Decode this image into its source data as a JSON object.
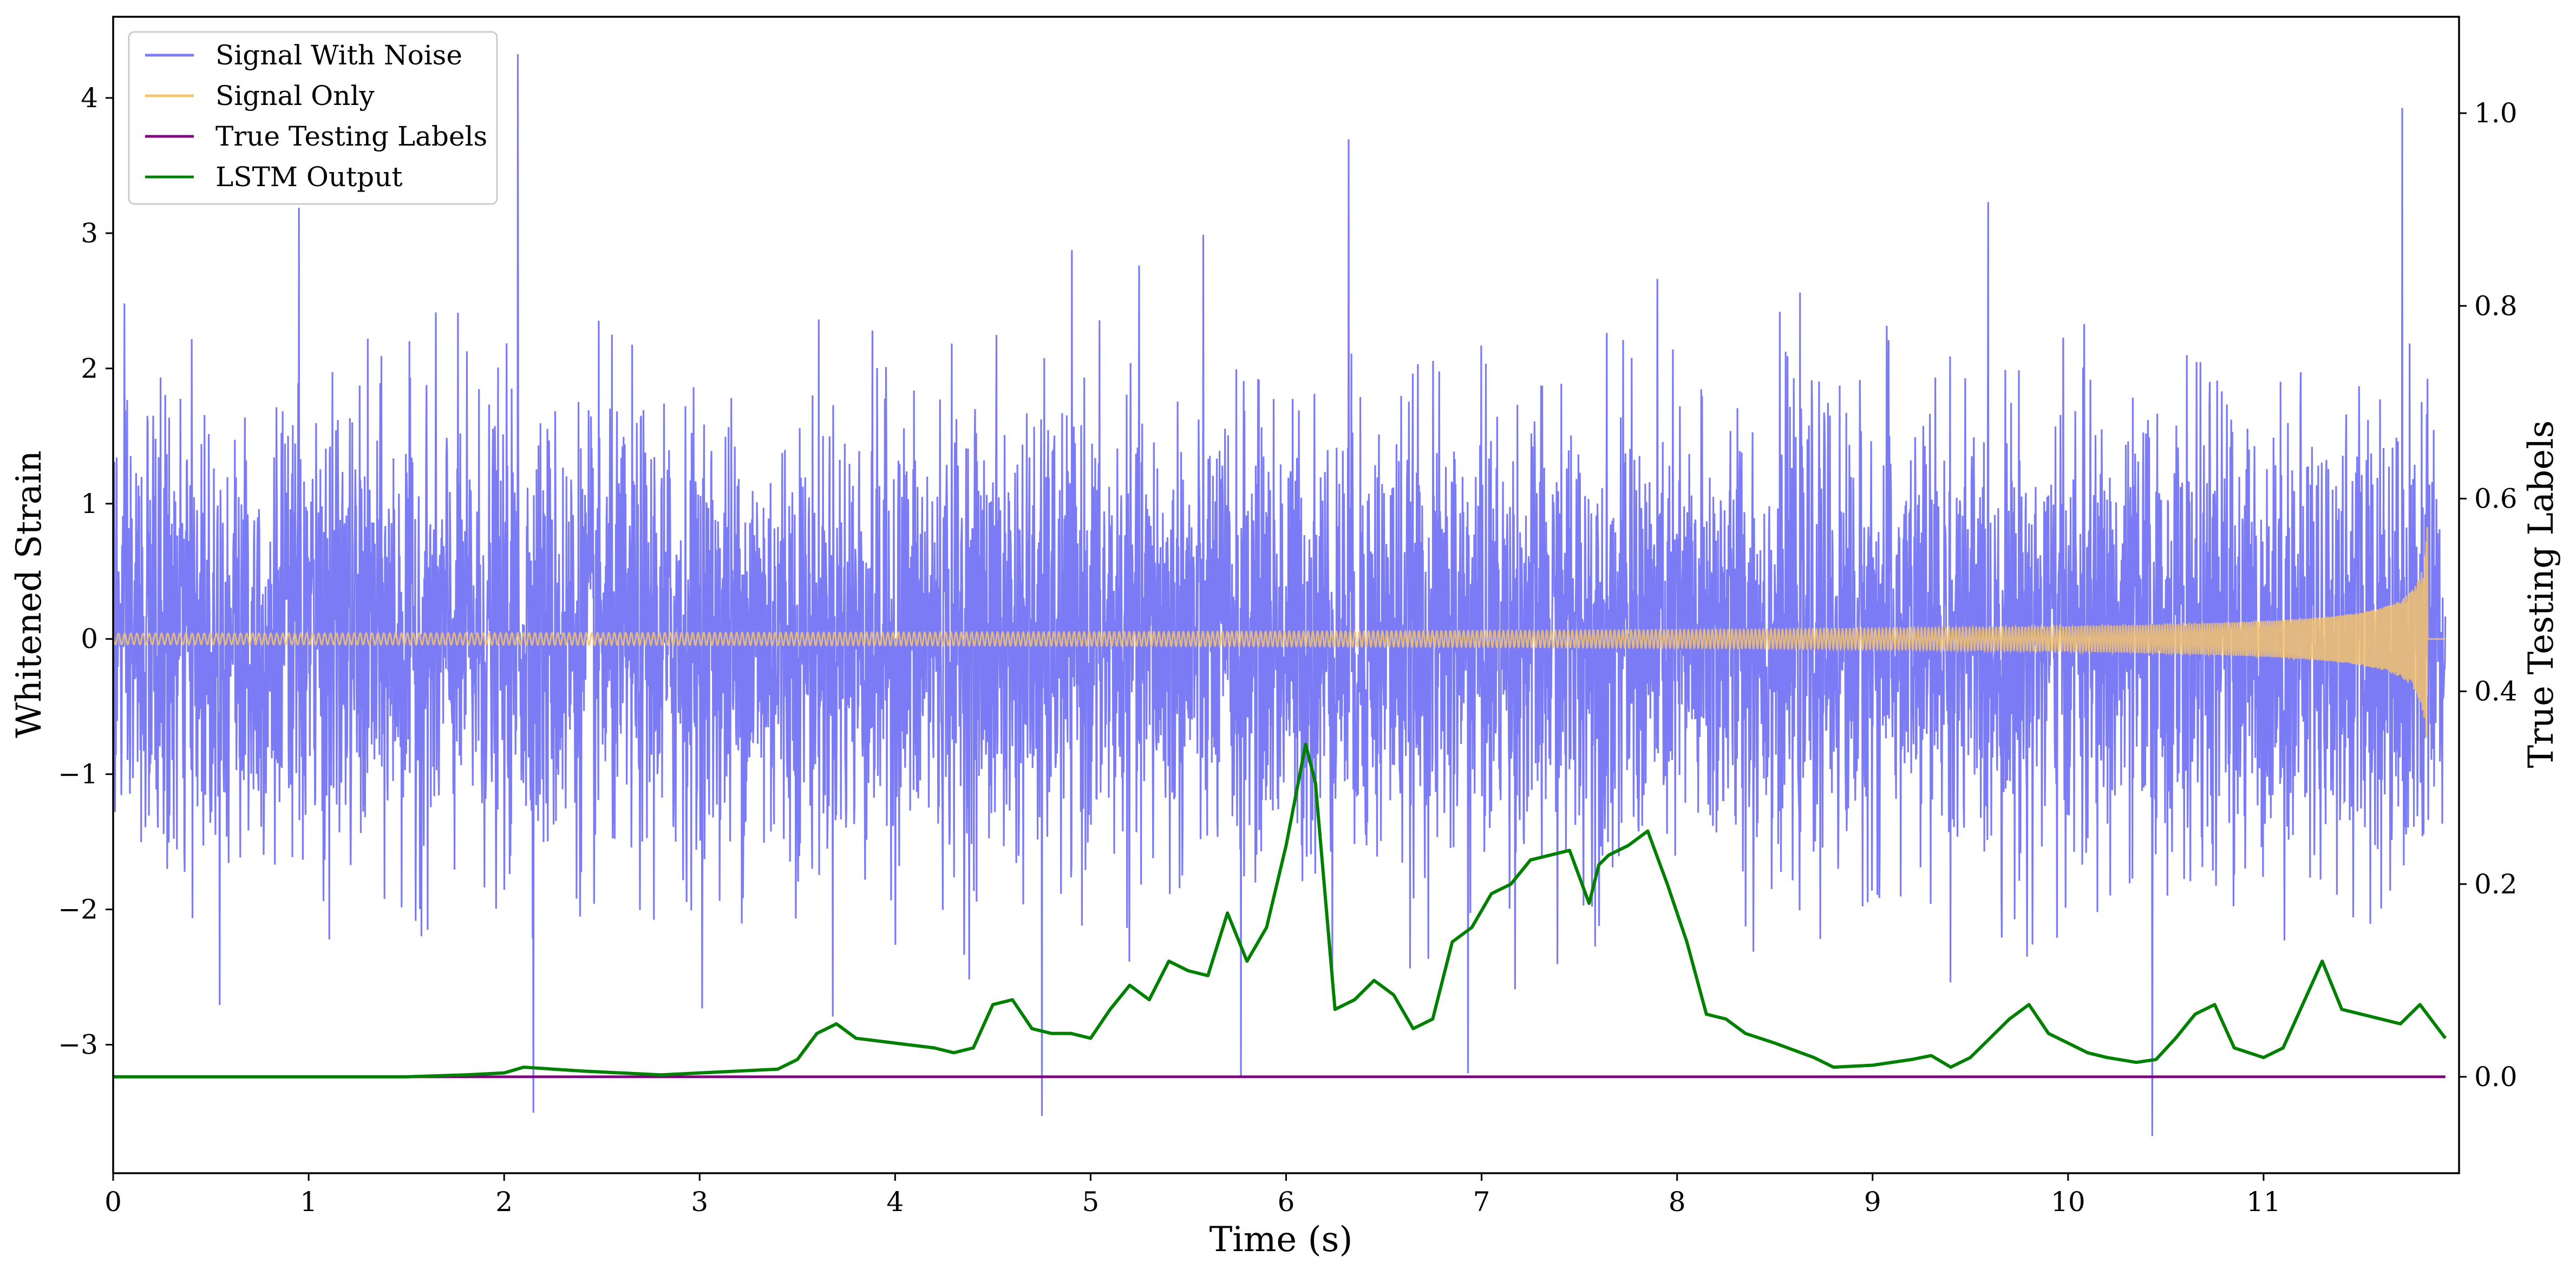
{
  "chart_data": {
    "type": "line",
    "title": "",
    "xlabel": "Time (s)",
    "ylabel": "Whitened Strain",
    "y2label": "True Testing Labels",
    "xlim": [
      0,
      12
    ],
    "ylim": [
      -3.95,
      4.6
    ],
    "y2lim": [
      -0.1,
      1.1
    ],
    "x_ticks": [
      "0",
      "1",
      "2",
      "3",
      "4",
      "5",
      "6",
      "7",
      "8",
      "9",
      "10",
      "11"
    ],
    "x_tick_values": [
      0,
      1,
      2,
      3,
      4,
      5,
      6,
      7,
      8,
      9,
      10,
      11
    ],
    "y_ticks": [
      "4",
      "3",
      "2",
      "1",
      "0",
      "−1",
      "−2",
      "−3"
    ],
    "y_tick_values": [
      4,
      3,
      2,
      1,
      0,
      -1,
      -2,
      -3
    ],
    "y2_ticks": [
      "1.0",
      "0.8",
      "0.6",
      "0.4",
      "0.2",
      "0.0"
    ],
    "y2_tick_values": [
      1.0,
      0.8,
      0.6,
      0.4,
      0.2,
      0.0
    ],
    "grid": false,
    "legend_position": "top-left",
    "colors": {
      "noise": "#7b7bf5",
      "signal": "#f4c36d",
      "labels": "#800080",
      "lstm": "#008000"
    },
    "series": [
      {
        "name": "Signal With Noise",
        "axis": "left",
        "description_range": [
          -3.6,
          4.28
        ],
        "peaks": [
          {
            "x": 0.95,
            "y": 3.2
          },
          {
            "x": 2.07,
            "y": 4.28
          },
          {
            "x": 2.15,
            "y": -3.5
          },
          {
            "x": 4.75,
            "y": -3.5
          },
          {
            "x": 6.32,
            "y": 3.72
          },
          {
            "x": 5.77,
            "y": -3.28
          },
          {
            "x": 6.93,
            "y": -3.27
          },
          {
            "x": 10.43,
            "y": -3.6
          },
          {
            "x": 11.71,
            "y": 3.7
          }
        ]
      },
      {
        "name": "Signal Only",
        "axis": "left",
        "chirp_end_x": 11.84,
        "final_amplitude": 0.9
      },
      {
        "name": "True Testing Labels",
        "axis": "right",
        "x": [
          0,
          11.93
        ],
        "values": [
          0.0,
          0.0
        ]
      },
      {
        "name": "LSTM Output",
        "axis": "right",
        "x": [
          0,
          1.0,
          1.5,
          1.8,
          2.0,
          2.1,
          2.25,
          2.4,
          2.6,
          2.8,
          3.0,
          3.2,
          3.4,
          3.5,
          3.6,
          3.7,
          3.8,
          4.0,
          4.2,
          4.3,
          4.4,
          4.5,
          4.6,
          4.7,
          4.8,
          4.9,
          5.0,
          5.1,
          5.2,
          5.3,
          5.4,
          5.5,
          5.6,
          5.7,
          5.8,
          5.9,
          6.0,
          6.1,
          6.15,
          6.25,
          6.35,
          6.45,
          6.55,
          6.65,
          6.75,
          6.85,
          6.95,
          7.05,
          7.15,
          7.25,
          7.35,
          7.45,
          7.55,
          7.6,
          7.65,
          7.75,
          7.85,
          7.95,
          8.05,
          8.15,
          8.25,
          8.35,
          8.5,
          8.7,
          8.8,
          9.0,
          9.2,
          9.3,
          9.4,
          9.5,
          9.6,
          9.7,
          9.8,
          9.9,
          10.0,
          10.1,
          10.2,
          10.35,
          10.45,
          10.55,
          10.65,
          10.75,
          10.85,
          11.0,
          11.1,
          11.2,
          11.3,
          11.4,
          11.5,
          11.7,
          11.8,
          11.93
        ],
        "values": [
          0.0,
          0.0,
          0.0,
          0.002,
          0.004,
          0.01,
          0.008,
          0.006,
          0.004,
          0.002,
          0.004,
          0.006,
          0.008,
          0.018,
          0.045,
          0.055,
          0.04,
          0.035,
          0.03,
          0.025,
          0.03,
          0.075,
          0.08,
          0.05,
          0.045,
          0.045,
          0.04,
          0.07,
          0.095,
          0.08,
          0.12,
          0.11,
          0.105,
          0.17,
          0.12,
          0.155,
          0.24,
          0.345,
          0.305,
          0.07,
          0.08,
          0.1,
          0.085,
          0.05,
          0.06,
          0.14,
          0.155,
          0.19,
          0.2,
          0.225,
          0.23,
          0.235,
          0.18,
          0.22,
          0.23,
          0.24,
          0.255,
          0.2,
          0.14,
          0.065,
          0.06,
          0.045,
          0.035,
          0.02,
          0.01,
          0.012,
          0.018,
          0.022,
          0.01,
          0.02,
          0.04,
          0.06,
          0.075,
          0.045,
          0.035,
          0.025,
          0.02,
          0.015,
          0.018,
          0.04,
          0.065,
          0.075,
          0.03,
          0.02,
          0.03,
          0.075,
          0.12,
          0.07,
          0.065,
          0.055,
          0.075,
          0.04
        ]
      }
    ]
  }
}
